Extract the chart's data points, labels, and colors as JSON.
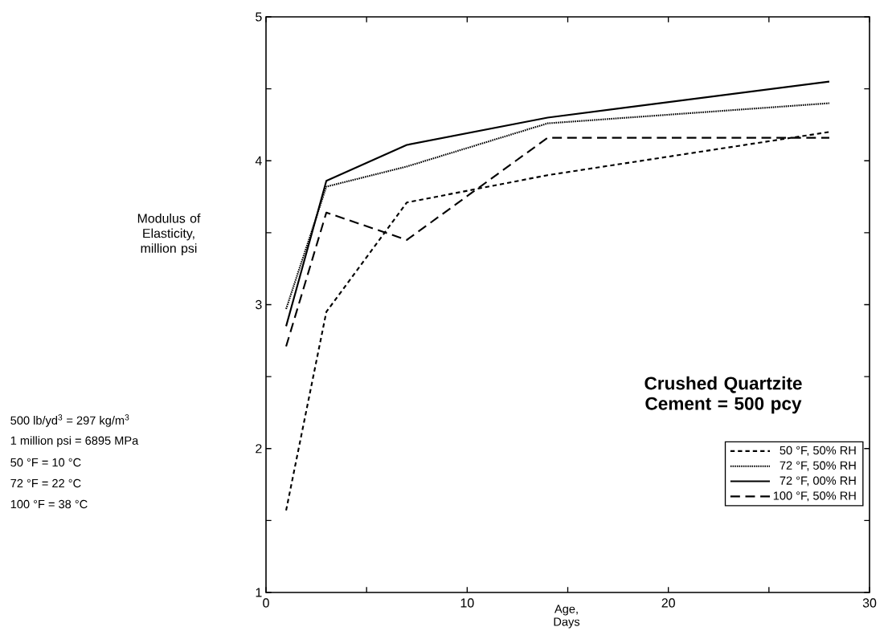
{
  "chart_data": {
    "type": "line",
    "title": "Crushed Quartzite Cement = 500 pcy",
    "xlabel": "Age, Days",
    "ylabel": "Modulus of Elasticity, million psi",
    "annotations": [
      "500 lb/yd$^{3}$ = 297 kg/m$^{3}$",
      "1 million psi = 6895 MPa",
      "50 °F = 10 °C",
      "72 °F = 22 °C",
      "100 °F = 38 °C"
    ],
    "x": [
      1,
      3,
      7,
      14,
      28
    ],
    "series": [
      {
        "name": "50 °F,  50% RH",
        "color": "#000000",
        "line_style": "dashed",
        "values": [
          1.57,
          2.95,
          3.71,
          3.9,
          4.2
        ]
      },
      {
        "name": "72 °F,  50% RH",
        "color": "#000000",
        "line_style": "dotted",
        "values": [
          2.97,
          3.82,
          3.96,
          4.26,
          4.4
        ]
      },
      {
        "name": "72 °F,  00% RH",
        "color": "#000000",
        "line_style": "solid",
        "values": [
          2.85,
          3.86,
          4.11,
          4.3,
          4.55
        ]
      },
      {
        "name": "100 °F,  50% RH",
        "color": "#000000",
        "line_style": "dashed",
        "values": [
          2.71,
          3.64,
          3.45,
          4.16,
          4.16
        ]
      }
    ],
    "xlim": [
      0,
      30
    ],
    "ylim": [
      1,
      5
    ],
    "xticks": [
      0,
      {
        "value": 5,
        "label": null
      },
      10,
      {
        "value": 15,
        "label": null
      },
      20,
      {
        "value": 25,
        "label": null
      },
      30
    ],
    "yticks": [
      1,
      {
        "value": 1.5,
        "label": null
      },
      2,
      {
        "value": 2.5,
        "label": null
      },
      3,
      {
        "value": 3.5,
        "label": null
      },
      4,
      {
        "value": 4.5,
        "label": null
      },
      5
    ],
    "legend": "bottom right"
  }
}
